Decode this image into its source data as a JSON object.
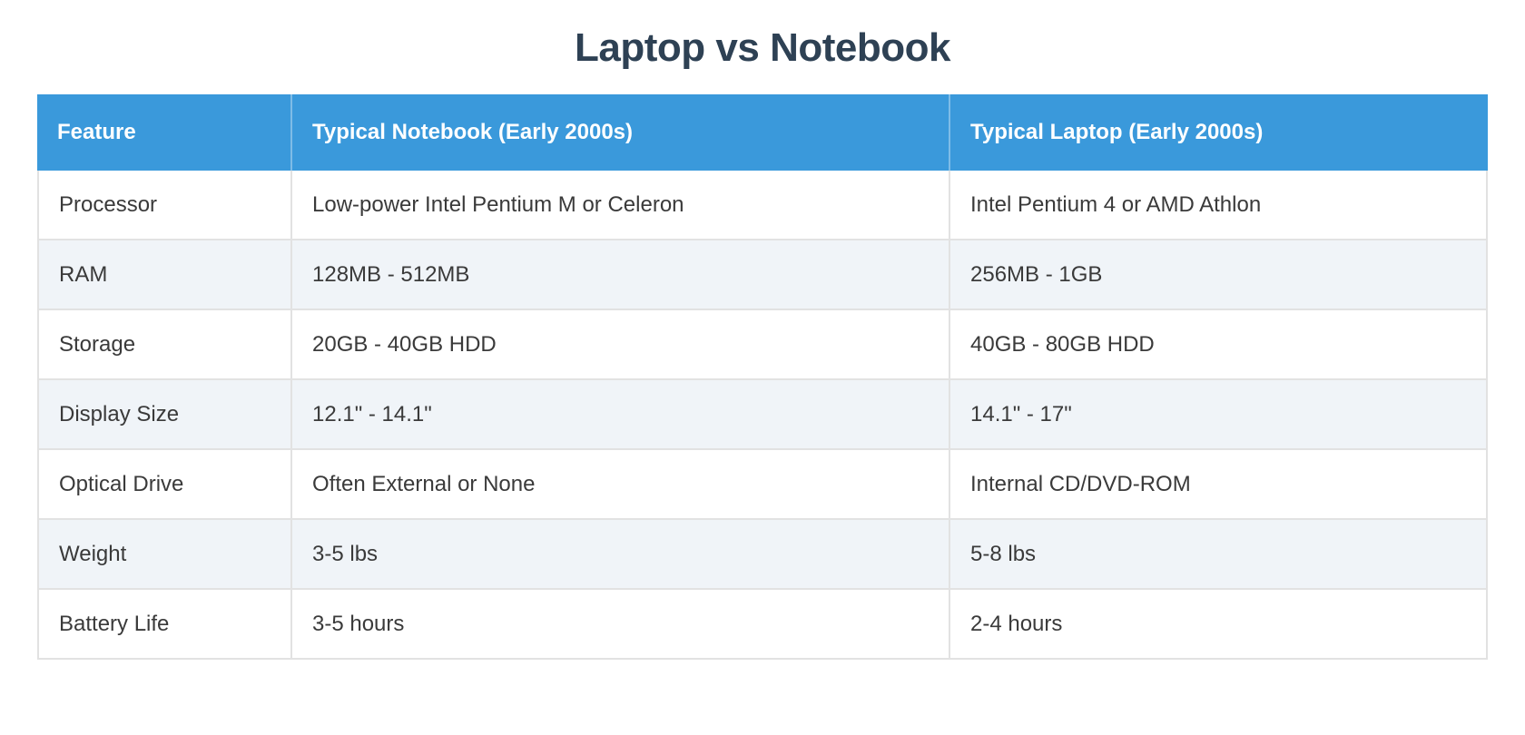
{
  "theme": {
    "header_bg": "#3a99db",
    "header_text": "#ffffff",
    "row_bg": "#ffffff",
    "row_alt_bg": "#f0f4f8",
    "border": "#e2e2e2",
    "title_color": "#2e4154",
    "cell_text": "#3a3a3a"
  },
  "chart_data": {
    "type": "table",
    "title": "Laptop vs Notebook",
    "columns": [
      "Feature",
      "Typical Notebook (Early 2000s)",
      "Typical Laptop (Early 2000s)"
    ],
    "rows": [
      [
        "Processor",
        "Low-power Intel Pentium M or Celeron",
        "Intel Pentium 4 or AMD Athlon"
      ],
      [
        "RAM",
        "128MB - 512MB",
        "256MB - 1GB"
      ],
      [
        "Storage",
        "20GB - 40GB HDD",
        "40GB - 80GB HDD"
      ],
      [
        "Display Size",
        "12.1\" - 14.1\"",
        "14.1\" - 17\""
      ],
      [
        "Optical Drive",
        "Often External or None",
        "Internal CD/DVD-ROM"
      ],
      [
        "Weight",
        "3-5 lbs",
        "5-8 lbs"
      ],
      [
        "Battery Life",
        "3-5 hours",
        "2-4 hours"
      ]
    ]
  }
}
